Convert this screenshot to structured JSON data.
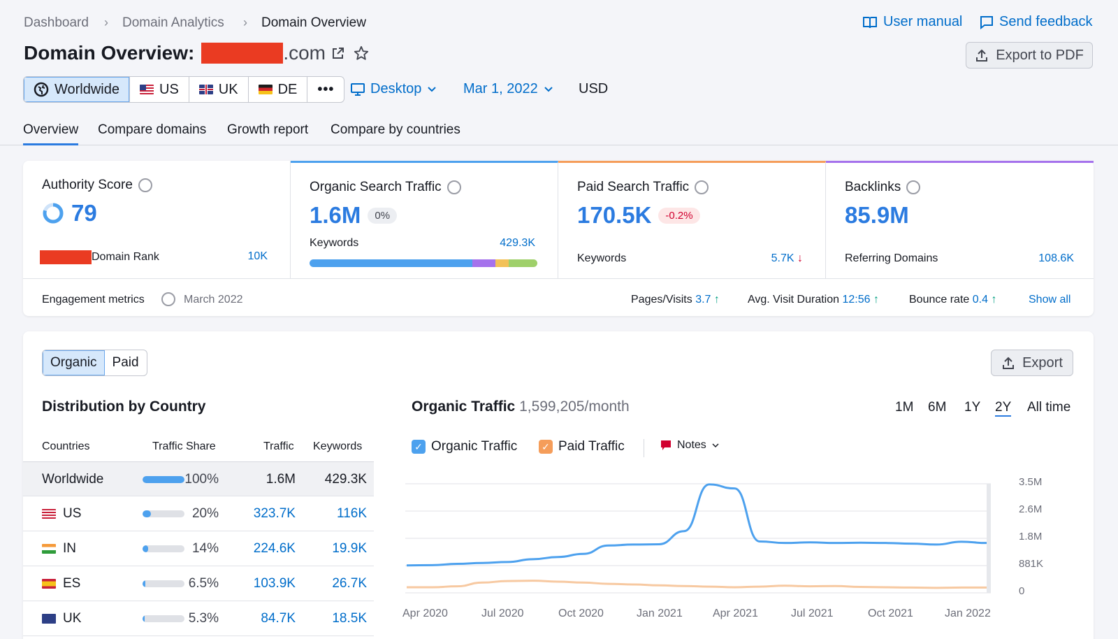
{
  "breadcrumbs": [
    "Dashboard",
    "Domain Analytics",
    "Domain Overview"
  ],
  "top_links": {
    "manual": "User manual",
    "feedback": "Send feedback"
  },
  "title": {
    "prefix": "Domain Overview:",
    "suffix": ".com"
  },
  "export_pdf": "Export to PDF",
  "regions": [
    "Worldwide",
    "US",
    "UK",
    "DE"
  ],
  "device": "Desktop",
  "date": "Mar 1, 2022",
  "currency": "USD",
  "tabs": [
    "Overview",
    "Compare domains",
    "Growth report",
    "Compare by countries"
  ],
  "metrics": {
    "authority": {
      "label": "Authority Score",
      "value": "79",
      "sub_label": "Domain Rank",
      "sub_value": "10K"
    },
    "organic": {
      "label": "Organic Search Traffic",
      "value": "1.6M",
      "change": "0%",
      "sub_label": "Keywords",
      "sub_value": "429.3K",
      "accent": "#4da1ee"
    },
    "paid": {
      "label": "Paid Search Traffic",
      "value": "170.5K",
      "change": "-0.2%",
      "sub_label": "Keywords",
      "sub_value": "5.7K",
      "accent": "#f59d5a"
    },
    "backlinks": {
      "label": "Backlinks",
      "value": "85.9M",
      "sub_label": "Referring Domains",
      "sub_value": "108.6K",
      "accent": "#a572ec"
    }
  },
  "keyword_bar": [
    {
      "share": 0.715,
      "color": "#4da1ee"
    },
    {
      "share": 0.1,
      "color": "#a572ec"
    },
    {
      "share": 0.06,
      "color": "#f2c158"
    },
    {
      "share": 0.125,
      "color": "#9fd06a"
    }
  ],
  "engagement": {
    "label": "Engagement metrics",
    "date": "March 2022",
    "pages_label": "Pages/Visits",
    "pages_value": "3.7",
    "duration_label": "Avg. Visit Duration",
    "duration_value": "12:56",
    "bounce_label": "Bounce rate",
    "bounce_value": "0.4",
    "show_all": "Show all"
  },
  "traffic_toggle": [
    "Organic",
    "Paid"
  ],
  "export": "Export",
  "distribution": {
    "title": "Distribution by Country",
    "headers": [
      "Countries",
      "Traffic Share",
      "Traffic",
      "Keywords"
    ],
    "rows": [
      {
        "country": "Worldwide",
        "share": "100%",
        "share_value": 1.0,
        "traffic": "1.6M",
        "keywords": "429.3K"
      },
      {
        "country": "US",
        "share": "20%",
        "share_value": 0.2,
        "traffic": "323.7K",
        "keywords": "116K"
      },
      {
        "country": "IN",
        "share": "14%",
        "share_value": 0.14,
        "traffic": "224.6K",
        "keywords": "19.9K"
      },
      {
        "country": "ES",
        "share": "6.5%",
        "share_value": 0.065,
        "traffic": "103.9K",
        "keywords": "26.7K"
      },
      {
        "country": "UK",
        "share": "5.3%",
        "share_value": 0.053,
        "traffic": "84.7K",
        "keywords": "18.5K"
      }
    ]
  },
  "traffic_chart": {
    "title": "Organic Traffic",
    "subtitle": "1,599,205/month",
    "ranges": [
      "1M",
      "6M",
      "1Y",
      "2Y",
      "All time"
    ],
    "active_range": "2Y",
    "legend": {
      "organic": "Organic Traffic",
      "paid": "Paid Traffic",
      "notes": "Notes"
    }
  },
  "chart_data": {
    "type": "line",
    "x": [
      "Apr 2020",
      "May 2020",
      "Jun 2020",
      "Jul 2020",
      "Aug 2020",
      "Sep 2020",
      "Oct 2020",
      "Nov 2020",
      "Dec 2020",
      "Jan 2021",
      "Feb 2021",
      "Mar 2021",
      "Apr 2021",
      "May 2021",
      "Jun 2021",
      "Jul 2021",
      "Aug 2021",
      "Sep 2021",
      "Oct 2021",
      "Nov 2021",
      "Dec 2021",
      "Jan 2022",
      "Feb 2022",
      "Mar 2022"
    ],
    "x_tick_labels": [
      "Apr 2020",
      "Jul 2020",
      "Oct 2020",
      "Jan 2021",
      "Apr 2021",
      "Jul 2021",
      "Oct 2021",
      "Jan 2022"
    ],
    "y_tick_labels": [
      "3.5M",
      "2.6M",
      "1.8M",
      "881K",
      "0"
    ],
    "ylim": [
      0,
      3500000
    ],
    "series": [
      {
        "name": "Organic Traffic",
        "color": "#4da1ee",
        "values": [
          880000,
          890000,
          930000,
          960000,
          990000,
          1080000,
          1150000,
          1250000,
          1520000,
          1550000,
          1560000,
          1980000,
          3480000,
          3350000,
          1650000,
          1600000,
          1620000,
          1600000,
          1610000,
          1600000,
          1580000,
          1550000,
          1640000,
          1600000
        ]
      },
      {
        "name": "Paid Traffic",
        "color": "#f7c9a1",
        "values": [
          180000,
          180000,
          210000,
          330000,
          380000,
          390000,
          360000,
          330000,
          290000,
          270000,
          240000,
          220000,
          200000,
          180000,
          200000,
          230000,
          210000,
          220000,
          190000,
          180000,
          170000,
          160000,
          170000,
          170000
        ]
      }
    ],
    "grid": true
  }
}
